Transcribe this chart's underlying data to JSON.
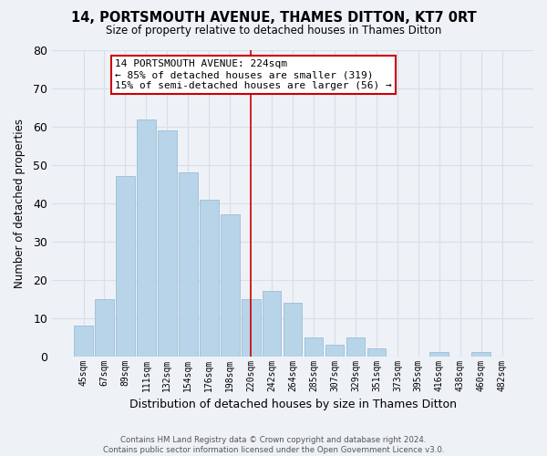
{
  "title": "14, PORTSMOUTH AVENUE, THAMES DITTON, KT7 0RT",
  "subtitle": "Size of property relative to detached houses in Thames Ditton",
  "xlabel": "Distribution of detached houses by size in Thames Ditton",
  "ylabel": "Number of detached properties",
  "bar_labels": [
    "45sqm",
    "67sqm",
    "89sqm",
    "111sqm",
    "132sqm",
    "154sqm",
    "176sqm",
    "198sqm",
    "220sqm",
    "242sqm",
    "264sqm",
    "285sqm",
    "307sqm",
    "329sqm",
    "351sqm",
    "373sqm",
    "395sqm",
    "416sqm",
    "438sqm",
    "460sqm",
    "482sqm"
  ],
  "bar_values": [
    8,
    15,
    47,
    62,
    59,
    48,
    41,
    37,
    15,
    17,
    14,
    5,
    3,
    5,
    2,
    0,
    0,
    1,
    0,
    1,
    0
  ],
  "bar_color": "#b8d4e8",
  "bar_edge_color": "#9bbdd8",
  "highlight_index": 8,
  "highlight_line_color": "#cc0000",
  "annotation_title": "14 PORTSMOUTH AVENUE: 224sqm",
  "annotation_line1": "← 85% of detached houses are smaller (319)",
  "annotation_line2": "15% of semi-detached houses are larger (56) →",
  "annotation_box_facecolor": "#ffffff",
  "annotation_box_edgecolor": "#cc0000",
  "ylim": [
    0,
    80
  ],
  "yticks": [
    0,
    10,
    20,
    30,
    40,
    50,
    60,
    70,
    80
  ],
  "footer_line1": "Contains HM Land Registry data © Crown copyright and database right 2024.",
  "footer_line2": "Contains public sector information licensed under the Open Government Licence v3.0.",
  "background_color": "#eef2f7",
  "grid_color": "#d8dfe8"
}
